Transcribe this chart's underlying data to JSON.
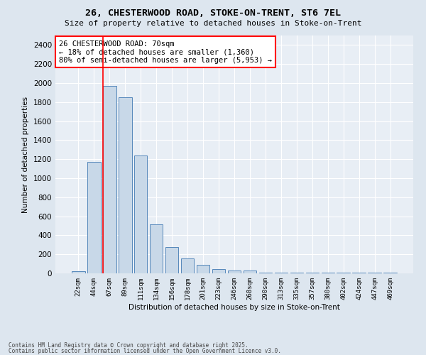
{
  "title1": "26, CHESTERWOOD ROAD, STOKE-ON-TRENT, ST6 7EL",
  "title2": "Size of property relative to detached houses in Stoke-on-Trent",
  "xlabel": "Distribution of detached houses by size in Stoke-on-Trent",
  "ylabel": "Number of detached properties",
  "categories": [
    "22sqm",
    "44sqm",
    "67sqm",
    "89sqm",
    "111sqm",
    "134sqm",
    "156sqm",
    "178sqm",
    "201sqm",
    "223sqm",
    "246sqm",
    "268sqm",
    "290sqm",
    "313sqm",
    "335sqm",
    "357sqm",
    "380sqm",
    "402sqm",
    "424sqm",
    "447sqm",
    "469sqm"
  ],
  "values": [
    25,
    1170,
    1970,
    1850,
    1240,
    515,
    275,
    155,
    90,
    45,
    30,
    30,
    10,
    5,
    5,
    5,
    5,
    5,
    5,
    5,
    5
  ],
  "bar_color": "#c8d8e8",
  "bar_edgecolor": "#5588bb",
  "ylim": [
    0,
    2500
  ],
  "yticks": [
    0,
    200,
    400,
    600,
    800,
    1000,
    1200,
    1400,
    1600,
    1800,
    2000,
    2200,
    2400
  ],
  "red_line_index": 2,
  "annotation_text": "26 CHESTERWOOD ROAD: 70sqm\n← 18% of detached houses are smaller (1,360)\n80% of semi-detached houses are larger (5,953) →",
  "footer1": "Contains HM Land Registry data © Crown copyright and database right 2025.",
  "footer2": "Contains public sector information licensed under the Open Government Licence v3.0.",
  "bg_color": "#dde6ef",
  "plot_bg_color": "#e8eef5"
}
